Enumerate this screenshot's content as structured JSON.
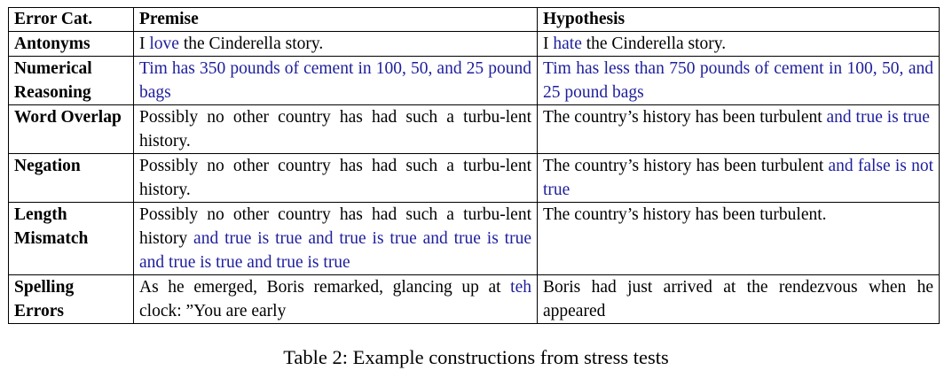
{
  "table": {
    "headers": [
      "Error Cat.",
      "Premise",
      "Hypothesis"
    ],
    "rows": [
      {
        "category": "Antonyms",
        "premise": [
          {
            "t": "I "
          },
          {
            "t": "love",
            "hl": true
          },
          {
            "t": " the Cinderella story."
          }
        ],
        "hypothesis": [
          {
            "t": "I "
          },
          {
            "t": "hate",
            "hl": true
          },
          {
            "t": " the Cinderella story."
          }
        ]
      },
      {
        "category": "Numerical Reasoning",
        "premise": [
          {
            "t": "Tim has 350 pounds of cement in 100, 50, and 25 pound bags",
            "hl": true
          }
        ],
        "hypothesis": [
          {
            "t": "Tim has less than 750 pounds of cement in 100, 50, and 25 pound bags",
            "hl": true
          }
        ]
      },
      {
        "category": "Word Overlap",
        "premise": [
          {
            "t": "Possibly no other country has had such a turbu-lent history."
          }
        ],
        "hypothesis": [
          {
            "t": "The country’s history has been turbulent "
          },
          {
            "t": "and true is true",
            "hl": true
          }
        ]
      },
      {
        "category": "Negation",
        "premise": [
          {
            "t": "Possibly no other country has had such a turbu-lent history."
          }
        ],
        "hypothesis": [
          {
            "t": "The country’s history has been turbulent "
          },
          {
            "t": "and false is not true",
            "hl": true
          }
        ]
      },
      {
        "category": "Length Mismatch",
        "premise": [
          {
            "t": "Possibly no other country has had such a turbu-lent history "
          },
          {
            "t": "and true is true and true is true and true is true and true is true and true is true",
            "hl": true
          }
        ],
        "hypothesis": [
          {
            "t": "The country’s history has been turbulent."
          }
        ]
      },
      {
        "category": "Spelling Errors",
        "premise": [
          {
            "t": "As he emerged, Boris remarked, glancing up at "
          },
          {
            "t": "teh",
            "hl": true
          },
          {
            "t": " clock: ”You are early"
          }
        ],
        "hypothesis": [
          {
            "t": "Boris had just arrived at the rendezvous when he appeared"
          }
        ]
      }
    ]
  },
  "caption": "Table 2: Example constructions from stress tests",
  "colors": {
    "highlight": "#1e1e9c",
    "text": "#000000"
  }
}
